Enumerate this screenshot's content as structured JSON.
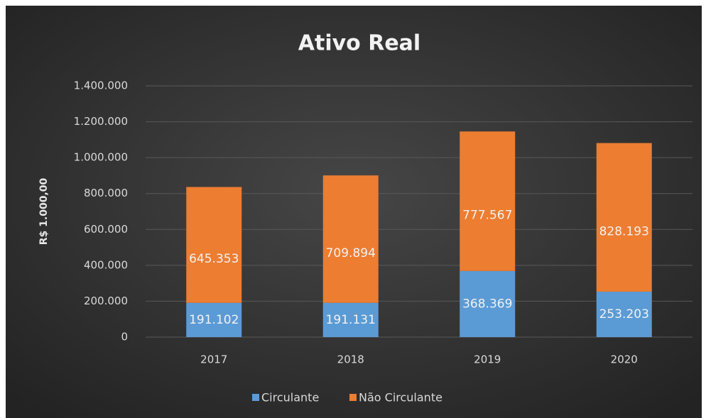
{
  "chart_data": {
    "type": "stacked_bar",
    "title": "Ativo Real",
    "y_label": "R$ 1.000,00",
    "categories": [
      "2017",
      "2018",
      "2019",
      "2020"
    ],
    "series": [
      {
        "name": "Circulante",
        "color": "#5b9bd5",
        "values": [
          191102,
          191131,
          368369,
          253203
        ],
        "value_labels": [
          "191.102",
          "191.131",
          "368.369",
          "253.203"
        ]
      },
      {
        "name": "Não Circulante",
        "color": "#ed7d31",
        "values": [
          645353,
          709894,
          777567,
          828193
        ],
        "value_labels": [
          "645.353",
          "709.894",
          "777.567",
          "828.193"
        ]
      }
    ],
    "ylim": [
      0,
      1400000
    ],
    "yticks": [
      0,
      {
        "value": 200000,
        "label": "200.000"
      },
      {
        "value": 400000,
        "label": "400.000"
      },
      {
        "value": 600000,
        "label": "600.000"
      },
      {
        "value": 800000,
        "label": "800.000"
      },
      {
        "value": 1000000,
        "label": "1.000.000"
      },
      {
        "value": 1200000,
        "label": "1.200.000"
      },
      {
        "value": 1400000,
        "label": "1.400.000"
      }
    ],
    "grid": true,
    "legend": "bottom"
  }
}
